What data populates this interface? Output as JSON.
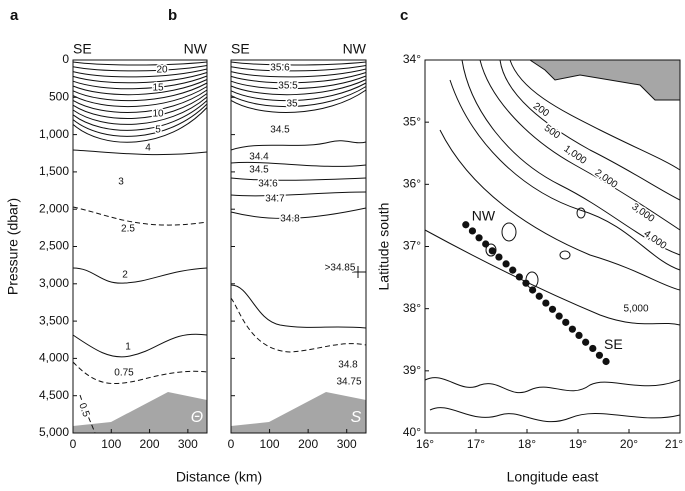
{
  "chart_data": [
    {
      "type": "contour",
      "panel": "a",
      "left_label": "SE",
      "right_label": "NW",
      "symbol": "Θ",
      "y_label": "Pressure (dbar)",
      "x_label": "Distance (km)",
      "yreversed": true,
      "xlim": [
        0,
        350
      ],
      "xticks": [
        0,
        100,
        200,
        300
      ],
      "ylim": [
        0,
        5000
      ],
      "yticks": [
        0,
        500,
        {
          "value": 1000,
          "label": "1,000"
        },
        {
          "value": 1500,
          "label": "1,500"
        },
        {
          "value": 2000,
          "label": "2,000"
        },
        {
          "value": 2500,
          "label": "2,500"
        },
        {
          "value": 3000,
          "label": "3,000"
        },
        {
          "value": 3500,
          "label": "3,500"
        },
        {
          "value": 4000,
          "label": "4,000"
        },
        {
          "value": 4500,
          "label": "4,500"
        },
        {
          "value": 5000,
          "label": "5,000"
        }
      ],
      "contour_labels": [
        "20",
        "15",
        "10",
        "5",
        "4",
        "3",
        "2.5",
        "2",
        "1",
        "0.75",
        "0.5"
      ]
    },
    {
      "type": "contour",
      "panel": "b",
      "left_label": "SE",
      "right_label": "NW",
      "symbol": "S",
      "yreversed": true,
      "xlim": [
        0,
        350
      ],
      "xticks": [
        0,
        100,
        200,
        300
      ],
      "ylim": [
        0,
        5000
      ],
      "contour_labels": [
        "35.6",
        "35.5",
        "35",
        "34.5",
        "34.4",
        "34.5",
        "34.6",
        "34.7",
        "34.8",
        ">34.85",
        "34.8",
        "34.75"
      ]
    },
    {
      "type": "scatter",
      "panel": "c",
      "y_label": "Latitude south",
      "x_label": "Longitude east",
      "yreversed": true,
      "xlim": [
        16,
        21
      ],
      "xticks": [
        {
          "value": 16,
          "label": "16°"
        },
        {
          "value": 17,
          "label": "17°"
        },
        {
          "value": 18,
          "label": "18°"
        },
        {
          "value": 19,
          "label": "19°"
        },
        {
          "value": 20,
          "label": "20°"
        },
        {
          "value": 21,
          "label": "21°"
        }
      ],
      "ylim": [
        34,
        40
      ],
      "yticks": [
        {
          "value": 34,
          "label": "34°"
        },
        {
          "value": 35,
          "label": "35°"
        },
        {
          "value": 36,
          "label": "36°"
        },
        {
          "value": 37,
          "label": "37°"
        },
        {
          "value": 38,
          "label": "38°"
        },
        {
          "value": 39,
          "label": "39°"
        },
        {
          "value": 40,
          "label": "40°"
        }
      ],
      "series": [
        {
          "color": "#111111",
          "x": [
            16.8,
            16.93,
            17.06,
            17.19,
            17.32,
            17.45,
            17.59,
            17.72,
            17.85,
            17.98,
            18.11,
            18.24,
            18.37,
            18.5,
            18.63,
            18.76,
            18.89,
            19.02,
            19.15,
            19.29,
            19.42,
            19.55
          ],
          "values": [
            36.65,
            36.75,
            36.86,
            36.96,
            37.07,
            37.17,
            37.28,
            37.38,
            37.49,
            37.59,
            37.7,
            37.8,
            37.91,
            38.01,
            38.12,
            38.22,
            38.33,
            38.43,
            38.54,
            38.64,
            38.75,
            38.85
          ]
        }
      ],
      "point_labels": [
        "NW",
        "SE"
      ],
      "contour_labels": [
        "200",
        "500",
        "1,000",
        "2,000",
        "3,000",
        "4,000",
        "5,000"
      ]
    }
  ]
}
